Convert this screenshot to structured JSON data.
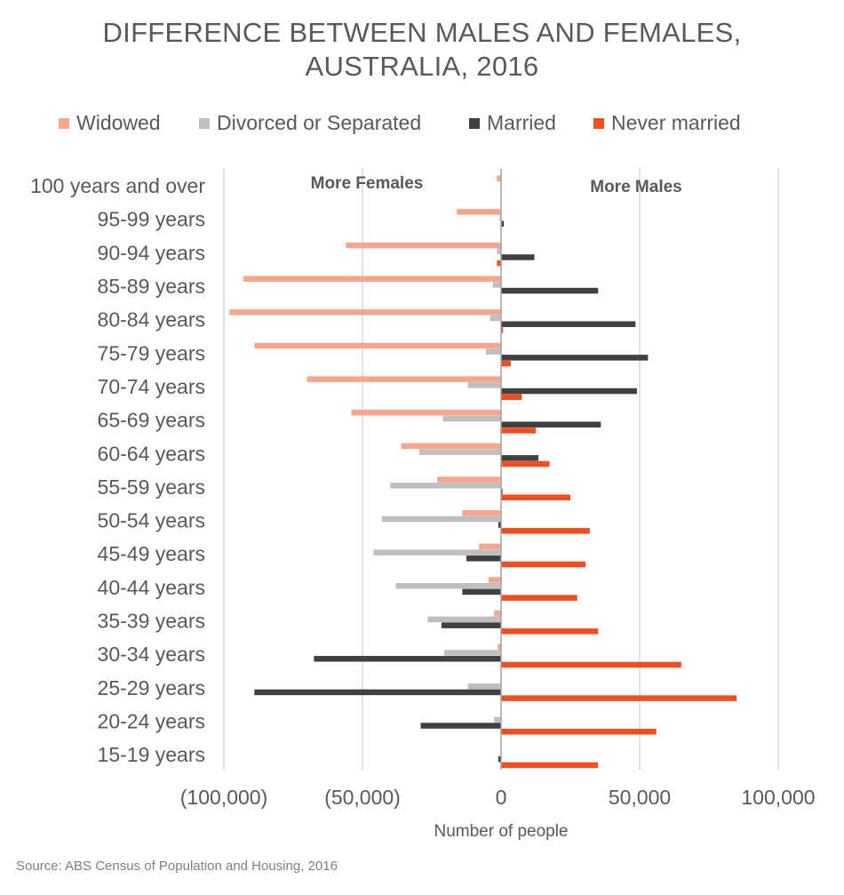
{
  "title_line1": "DIFFERENCE BETWEEN MALES AND FEMALES,",
  "title_line2": "AUSTRALIA, 2016",
  "source": "Source: ABS Census of Population and Housing, 2016",
  "colors": {
    "widowed": "#F8A58D",
    "divorced": "#BFBFBF",
    "married": "#404040",
    "never_married": "#F04E1F",
    "grid": "#D9D9D9",
    "text": "#595959"
  },
  "chart_data": {
    "type": "bar",
    "orientation": "horizontal",
    "title": "DIFFERENCE BETWEEN MALES AND FEMALES, AUSTRALIA, 2016",
    "xlabel": "Number of people",
    "ylabel": "",
    "xlim": [
      -100000,
      100000
    ],
    "x_ticks": [
      -100000,
      -50000,
      0,
      50000,
      100000
    ],
    "x_tick_labels": [
      "(100,000)",
      "(50,000)",
      "0",
      "50,000",
      "100,000"
    ],
    "grid": true,
    "legend_position": "top",
    "annotations": [
      "More Females",
      "More Males"
    ],
    "categories": [
      "100 years and over",
      "95-99 years",
      "90-94 years",
      "85-89 years",
      "80-84 years",
      "75-79 years",
      "70-74 years",
      "65-69 years",
      "60-64 years",
      "55-59 years",
      "50-54 years",
      "45-49 years",
      "40-44 years",
      "35-39 years",
      "30-34 years",
      "25-29 years",
      "20-24 years",
      "15-19 years"
    ],
    "series": [
      {
        "name": "Widowed",
        "key": "widowed",
        "values": [
          -1500,
          -16000,
          -56000,
          -93000,
          -98000,
          -89000,
          -70000,
          -54000,
          -36000,
          -23000,
          -14000,
          -8000,
          -4500,
          -2500,
          -1200,
          -300,
          0,
          0
        ]
      },
      {
        "name": "Divorced or Separated",
        "key": "divorced",
        "values": [
          0,
          -500,
          -1500,
          -3000,
          -4000,
          -5500,
          -12000,
          -21000,
          -29500,
          -40000,
          -43000,
          -46000,
          -38000,
          -26500,
          -20500,
          -12000,
          -2500,
          0
        ]
      },
      {
        "name": "Married",
        "key": "married",
        "values": [
          0,
          1000,
          12000,
          35000,
          48500,
          53000,
          49000,
          36000,
          13500,
          500,
          -1000,
          -12500,
          -14000,
          -21500,
          -67500,
          -89000,
          -29000,
          -1000
        ]
      },
      {
        "name": "Never married",
        "key": "never_married",
        "values": [
          0,
          0,
          -1500,
          0,
          700,
          3500,
          7500,
          12500,
          17500,
          25000,
          32000,
          30500,
          27500,
          35000,
          65000,
          85000,
          56000,
          35000
        ]
      }
    ]
  }
}
